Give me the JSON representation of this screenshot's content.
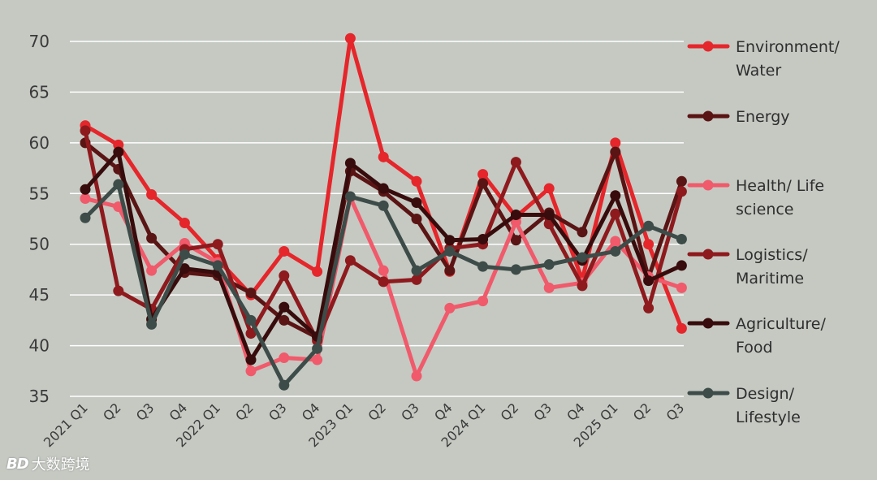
{
  "chart_data": {
    "type": "line",
    "categories": [
      "2021 Q1",
      "Q2",
      "Q3",
      "Q4",
      "2022 Q1",
      "Q2",
      "Q3",
      "Q4",
      "2023 Q1",
      "Q2",
      "Q3",
      "Q4",
      "2024 Q1",
      "Q2",
      "Q3",
      "Q4",
      "2025 Q1",
      "Q2",
      "Q3"
    ],
    "yticks": [
      35,
      40,
      45,
      50,
      55,
      60,
      65,
      70
    ],
    "ylim": [
      35,
      70
    ],
    "grid": true,
    "legend_position": "right",
    "series": [
      {
        "name": "Environment/ Water",
        "label_lines": [
          "Environment/",
          "Water"
        ],
        "color": "#e5262b",
        "values": [
          61.7,
          59.8,
          54.9,
          52.1,
          48.5,
          45.0,
          49.3,
          47.3,
          70.3,
          58.6,
          56.2,
          47.3,
          56.9,
          52.7,
          55.5,
          46.5,
          60.0,
          50.0,
          41.7
        ]
      },
      {
        "name": "Energy",
        "label_lines": [
          "Energy"
        ],
        "color": "#5a1414",
        "values": [
          60.0,
          57.4,
          50.6,
          47.2,
          46.9,
          45.2,
          42.5,
          40.8,
          57.2,
          55.2,
          52.5,
          47.4,
          56.0,
          50.4,
          53.1,
          51.2,
          59.1,
          46.7,
          56.2
        ]
      },
      {
        "name": "Health/ Life science",
        "label_lines": [
          "Health/ Life",
          "science"
        ],
        "color": "#f05a6b",
        "values": [
          54.5,
          53.7,
          47.4,
          50.1,
          48.2,
          37.5,
          38.8,
          38.6,
          54.6,
          47.4,
          37.0,
          43.7,
          44.4,
          52.2,
          45.7,
          46.2,
          50.3,
          46.8,
          45.7
        ]
      },
      {
        "name": "Logistics/ Maritime",
        "label_lines": [
          "Logistics/",
          "Maritime"
        ],
        "color": "#8e1a1e",
        "values": [
          61.2,
          45.4,
          43.6,
          49.5,
          50.0,
          41.2,
          46.9,
          40.5,
          48.4,
          46.3,
          46.5,
          49.6,
          50.0,
          58.1,
          52.0,
          45.9,
          53.0,
          43.7,
          55.2
        ]
      },
      {
        "name": "Agriculture/ Food",
        "label_lines": [
          "Agriculture/",
          "Food"
        ],
        "color": "#380c0c",
        "values": [
          55.4,
          59.1,
          42.6,
          47.6,
          47.2,
          38.6,
          43.8,
          40.9,
          58.0,
          55.5,
          54.1,
          50.4,
          50.5,
          52.9,
          52.9,
          48.4,
          54.8,
          46.4,
          47.9
        ]
      },
      {
        "name": "Design/ Lifestyle",
        "label_lines": [
          "Design/",
          "Lifestyle"
        ],
        "color": "#3d4c48",
        "values": [
          52.6,
          55.9,
          42.1,
          49.0,
          47.9,
          42.5,
          36.1,
          39.7,
          54.7,
          53.8,
          47.4,
          49.3,
          47.8,
          47.5,
          48.0,
          48.7,
          49.3,
          51.8,
          50.5
        ]
      }
    ]
  },
  "watermark": {
    "logo_text": "BD",
    "text": "大数跨境"
  }
}
